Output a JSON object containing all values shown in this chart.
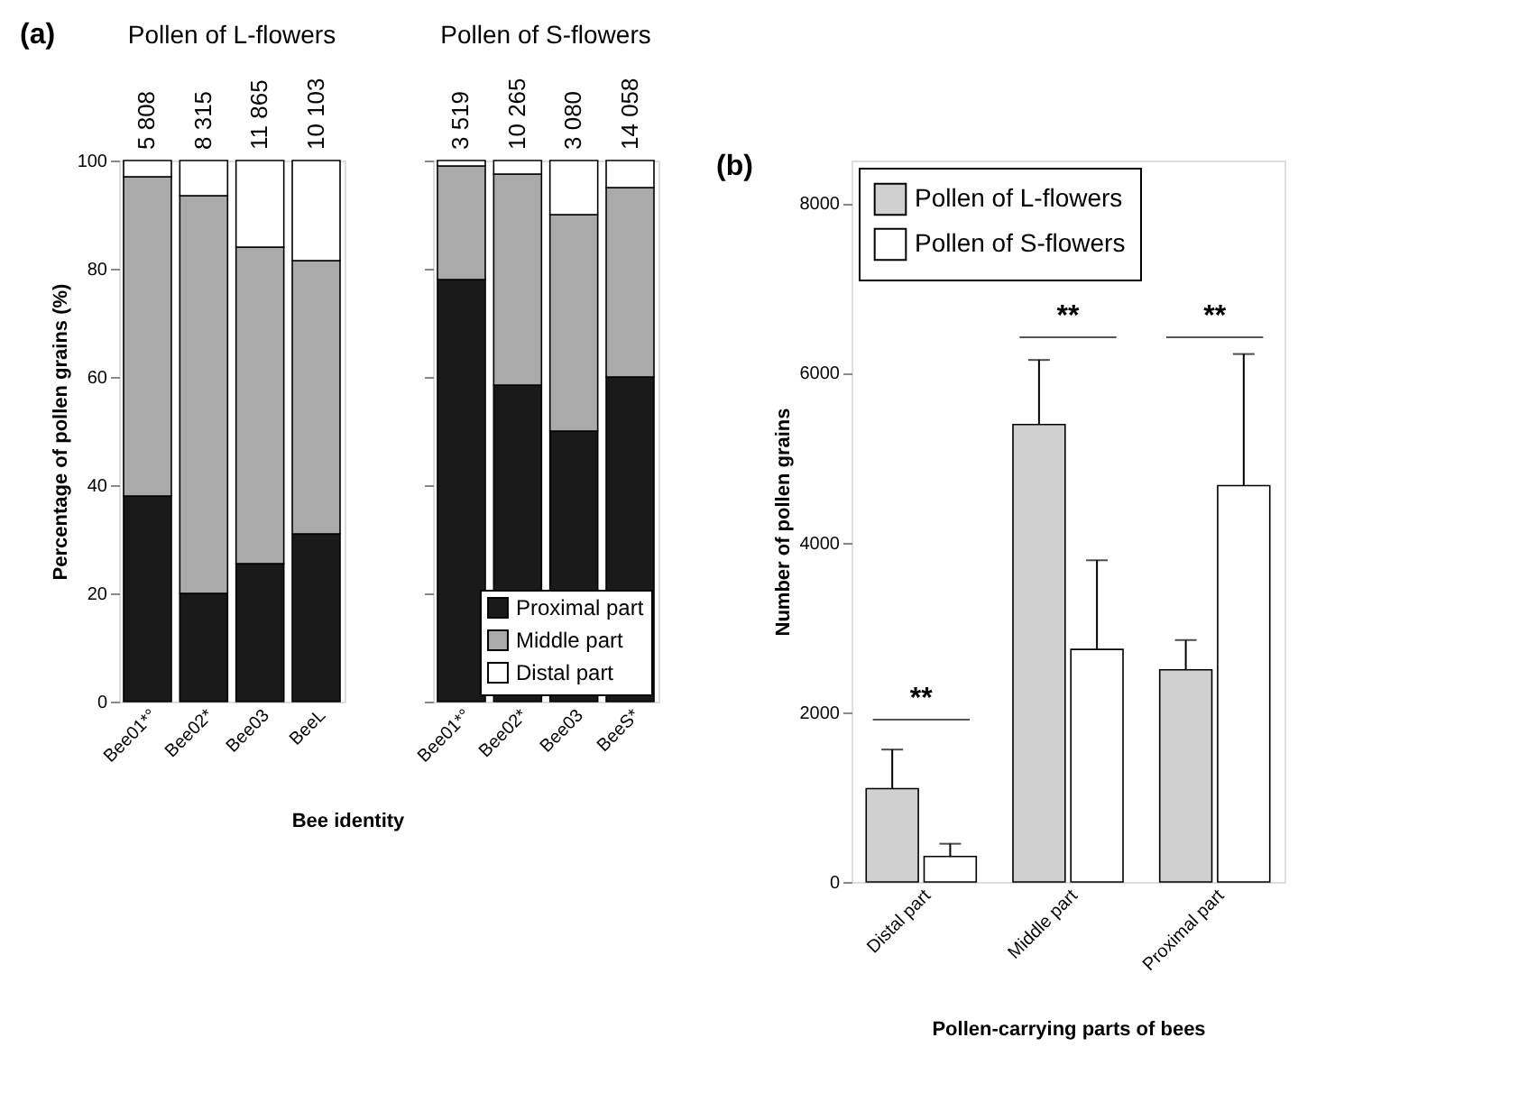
{
  "chart_data": [
    {
      "type": "bar",
      "stacked": true,
      "title": "Pollen of L-flowers",
      "ylabel": "Percentage of pollen grains (%)",
      "xlabel": "Bee identity",
      "categories": [
        "Bee01*°",
        "Bee02*",
        "Bee03",
        "BeeL"
      ],
      "ylim": [
        0,
        100
      ],
      "yticks": [
        0,
        20,
        40,
        60,
        80,
        100
      ],
      "legend": false,
      "series": [
        {
          "color": "#1a1a1a",
          "values": [
            38,
            20,
            25.5,
            31
          ]
        },
        {
          "color": "#aaaaaa",
          "values": [
            59,
            73.5,
            58.5,
            50.5
          ]
        },
        {
          "color": "#ffffff",
          "values": [
            3,
            6.5,
            16,
            18.5
          ]
        }
      ],
      "annotations": [
        "(a)",
        "5 808",
        "8 315",
        "11 865",
        "10 103"
      ]
    },
    {
      "type": "bar",
      "stacked": true,
      "title": "Pollen of S-flowers",
      "categories": [
        "Bee01*°",
        "Bee02*",
        "Bee03",
        "BeeS*"
      ],
      "ylim": [
        0,
        100
      ],
      "yticks": [
        0,
        20,
        40,
        60,
        80,
        100
      ],
      "tick_labels": "x",
      "legend": "bottom right",
      "series": [
        {
          "name": "Proximal part",
          "color": "#1a1a1a",
          "values": [
            78,
            58.5,
            50,
            60
          ]
        },
        {
          "name": "Middle part",
          "color": "#aaaaaa",
          "values": [
            21,
            39,
            40,
            35
          ]
        },
        {
          "name": "Distal part",
          "color": "#ffffff",
          "values": [
            1,
            2.5,
            10,
            5
          ]
        }
      ],
      "annotations": [
        "3 519",
        "10 265",
        "3 080",
        "14 058"
      ]
    },
    {
      "type": "bar",
      "ylabel": "Number of pollen grains",
      "xlabel": "Pollen-carrying parts of bees",
      "categories": [
        "Distal part",
        "Middle part",
        "Proximal part"
      ],
      "ylim": [
        0,
        8500
      ],
      "yticks": [
        0,
        2000,
        4000,
        6000,
        8000
      ],
      "legend": "top left",
      "series": [
        {
          "name": "Pollen of L-flowers",
          "color": "#d0d0d0",
          "values": [
            1100,
            5390,
            2500
          ],
          "errors": [
            [
              1100,
              1560
            ],
            [
              5390,
              6150
            ],
            [
              2500,
              2850
            ]
          ]
        },
        {
          "name": "Pollen of S-flowers",
          "color": "#ffffff",
          "values": [
            300,
            2740,
            4670
          ],
          "errors": [
            [
              300,
              450
            ],
            [
              2740,
              3790
            ],
            [
              4670,
              6220
            ]
          ]
        }
      ],
      "annotations": [
        "(b)",
        "**",
        "**",
        "**"
      ]
    }
  ]
}
